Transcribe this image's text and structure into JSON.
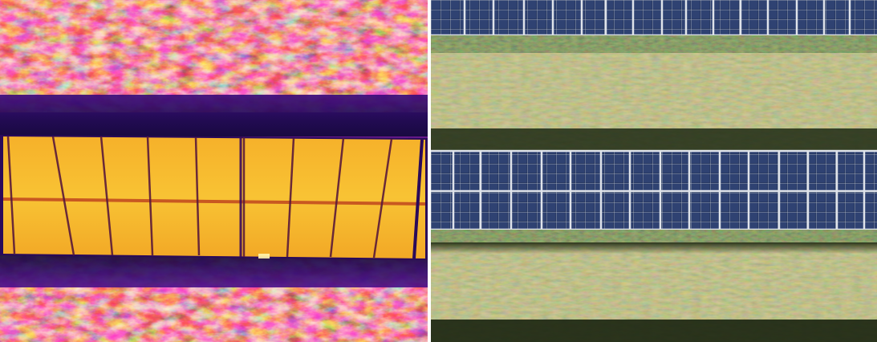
{
  "images": [
    {
      "name": "thermal-infrared-view",
      "subject": "solar-panel-row-thermal",
      "palette": [
        "#1a0a4a",
        "#4b0c8c",
        "#8e1a9a",
        "#d2356a",
        "#f26a1a",
        "#fba02a",
        "#fcd33c",
        "#fff3a0"
      ]
    },
    {
      "name": "rgb-visible-view",
      "subject": "solar-panel-rows-aerial",
      "palette": [
        "#1f2c4a",
        "#2e3f66",
        "#c7ccd6",
        "#5d6d33",
        "#7f8a4a",
        "#a3a06a",
        "#2a3a1a"
      ]
    }
  ]
}
